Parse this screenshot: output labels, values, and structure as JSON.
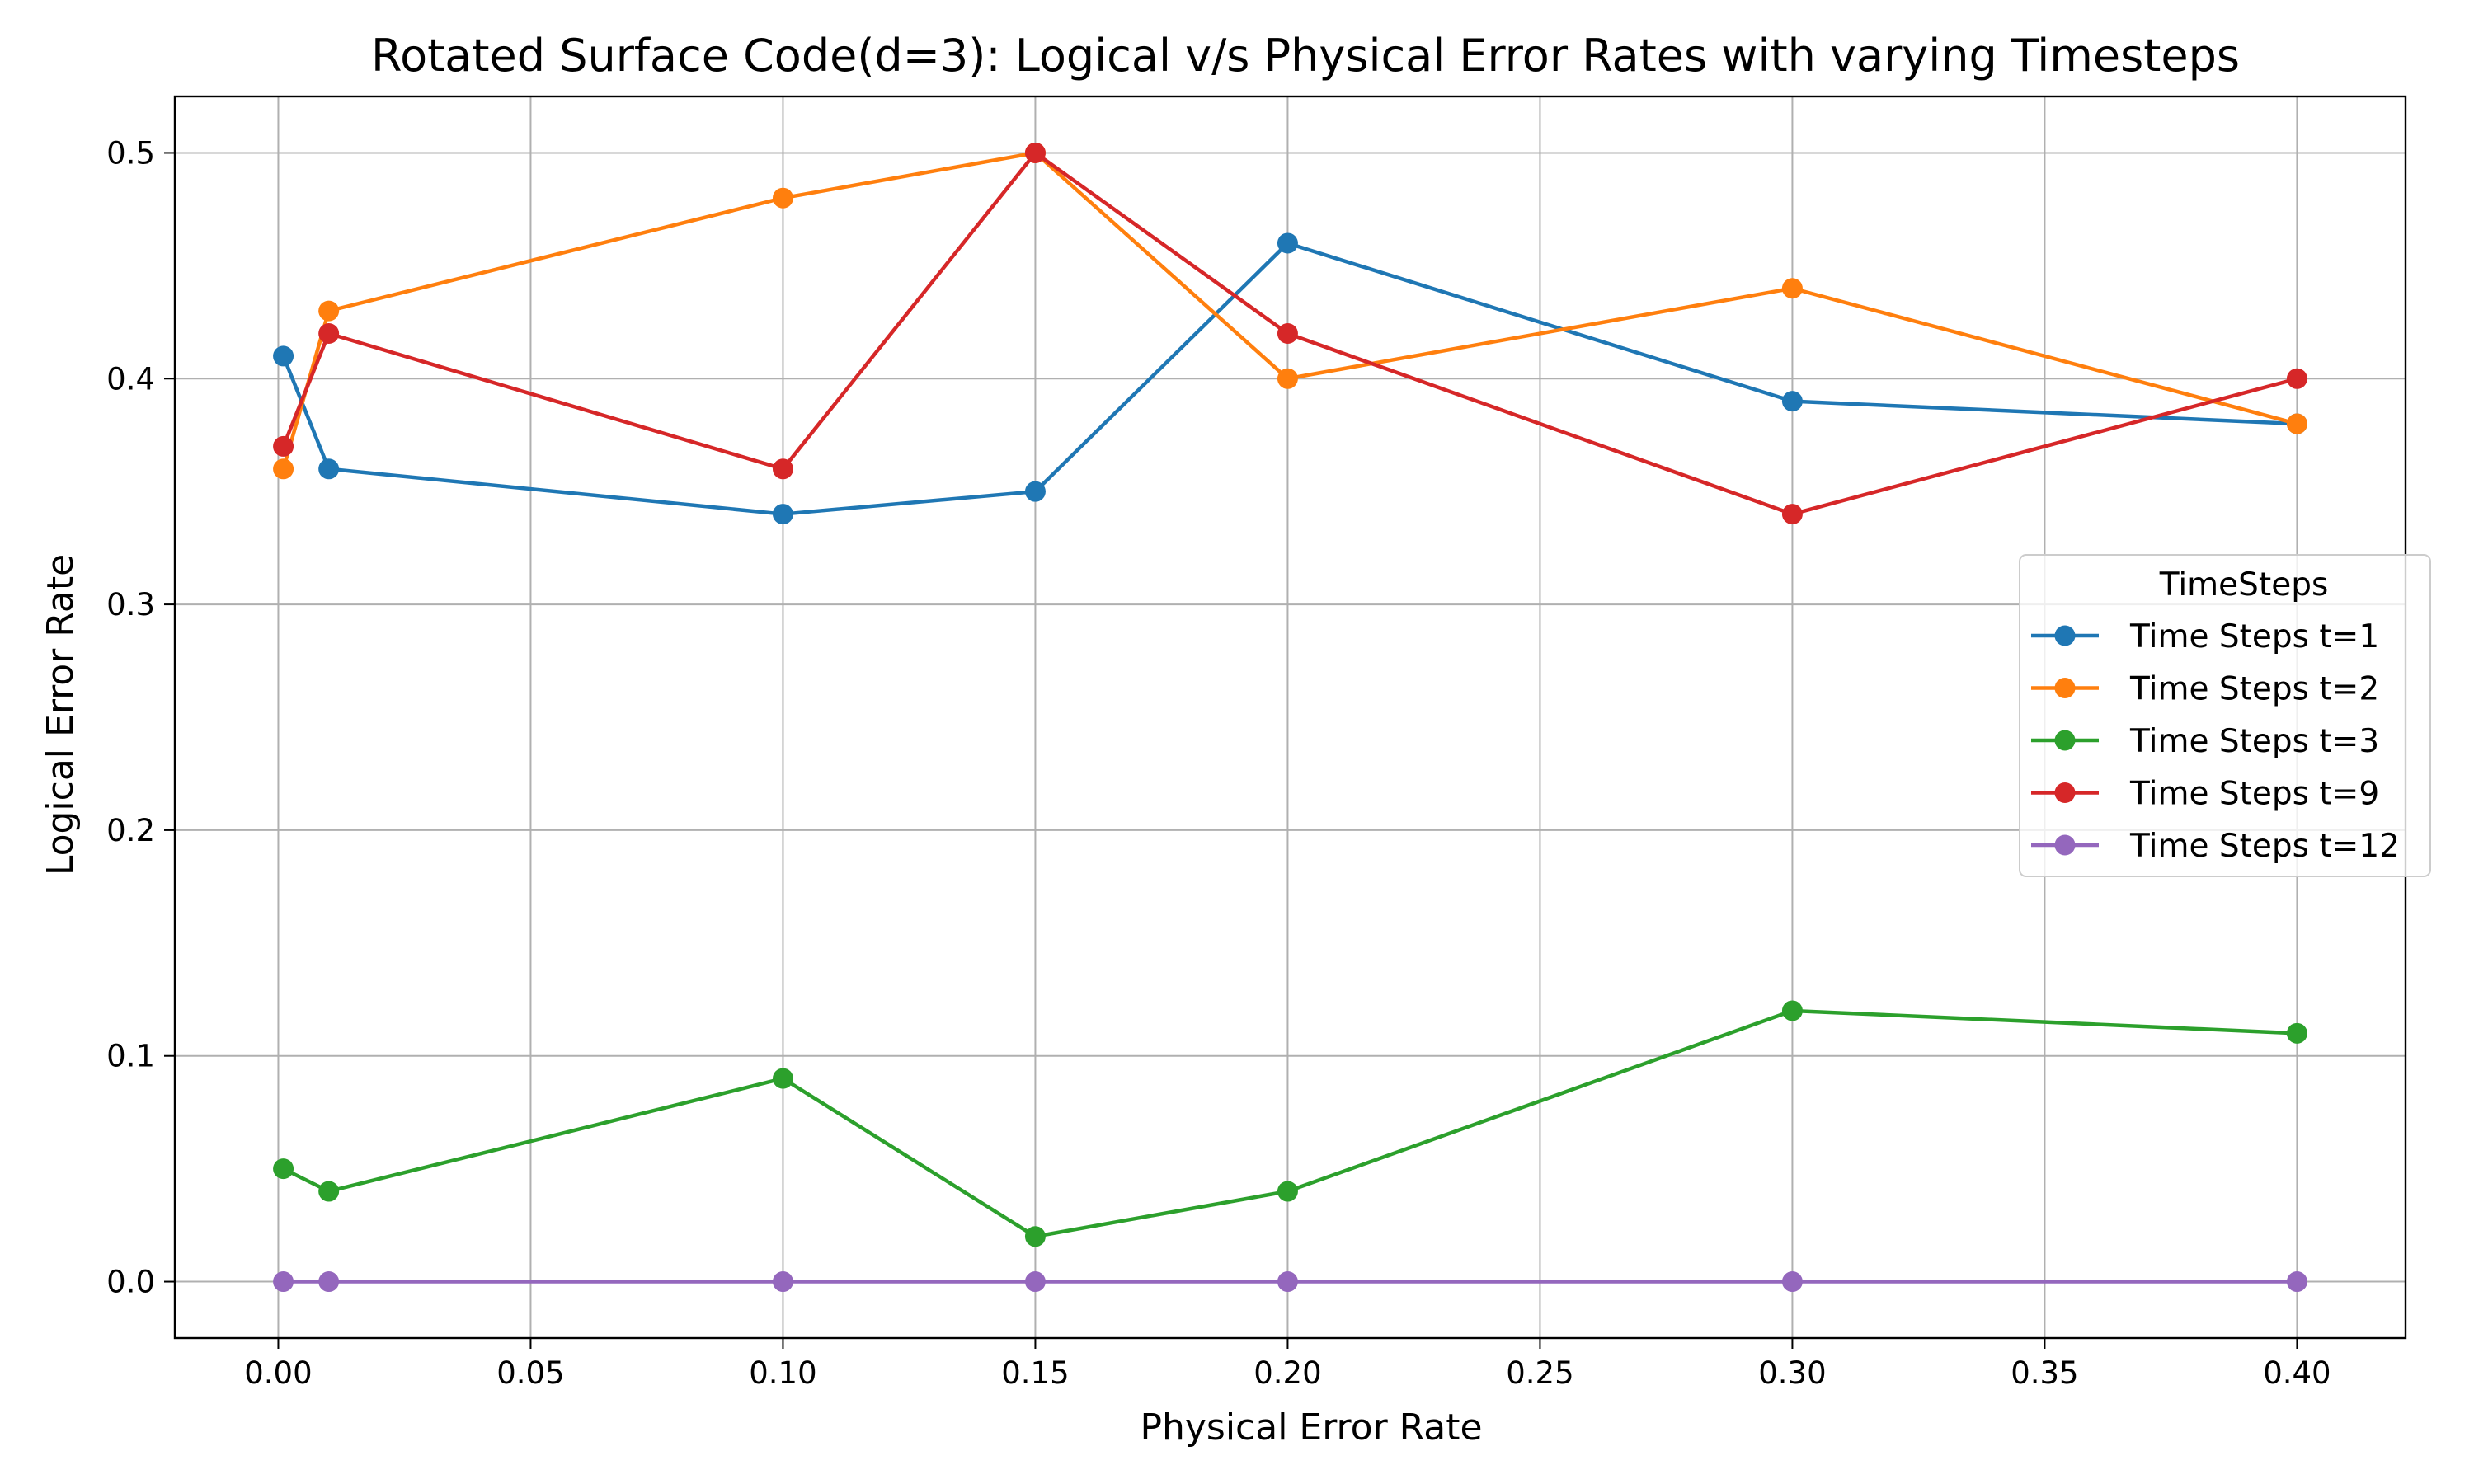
{
  "chart_data": {
    "type": "line",
    "title": "Rotated Surface Code(d=3): Logical v/s Physical Error Rates with varying Timesteps",
    "xlabel": "Physical Error Rate",
    "ylabel": "Logical Error Rate",
    "xlim": [
      -0.0205,
      0.4215
    ],
    "ylim": [
      -0.025,
      0.525
    ],
    "xticks": [
      0.0,
      0.05,
      0.1,
      0.15,
      0.2,
      0.25,
      0.3,
      0.35,
      0.4
    ],
    "xtick_labels": [
      "0.00",
      "0.05",
      "0.10",
      "0.15",
      "0.20",
      "0.25",
      "0.30",
      "0.35",
      "0.40"
    ],
    "yticks": [
      0.0,
      0.1,
      0.2,
      0.3,
      0.4,
      0.5
    ],
    "ytick_labels": [
      "0.0",
      "0.1",
      "0.2",
      "0.3",
      "0.4",
      "0.5"
    ],
    "grid": true,
    "legend": {
      "title": "TimeSteps",
      "placement": "center-right"
    },
    "x": [
      0.001,
      0.01,
      0.1,
      0.15,
      0.2,
      0.3,
      0.4
    ],
    "series": [
      {
        "name": "Time Steps t=1",
        "color": "#1f77b4",
        "values": [
          0.41,
          0.36,
          0.34,
          0.35,
          0.46,
          0.39,
          0.38
        ]
      },
      {
        "name": "Time Steps t=2",
        "color": "#ff7f0e",
        "values": [
          0.36,
          0.43,
          0.48,
          0.5,
          0.4,
          0.44,
          0.38
        ]
      },
      {
        "name": "Time Steps t=3",
        "color": "#2ca02c",
        "values": [
          0.05,
          0.04,
          0.09,
          0.02,
          0.04,
          0.12,
          0.11
        ]
      },
      {
        "name": "Time Steps t=9",
        "color": "#d62728",
        "values": [
          0.37,
          0.42,
          0.36,
          0.5,
          0.42,
          0.34,
          0.4
        ]
      },
      {
        "name": "Time Steps t=12",
        "color": "#9467bd",
        "values": [
          0.0,
          0.0,
          0.0,
          0.0,
          0.0,
          0.0,
          0.0
        ]
      }
    ]
  }
}
